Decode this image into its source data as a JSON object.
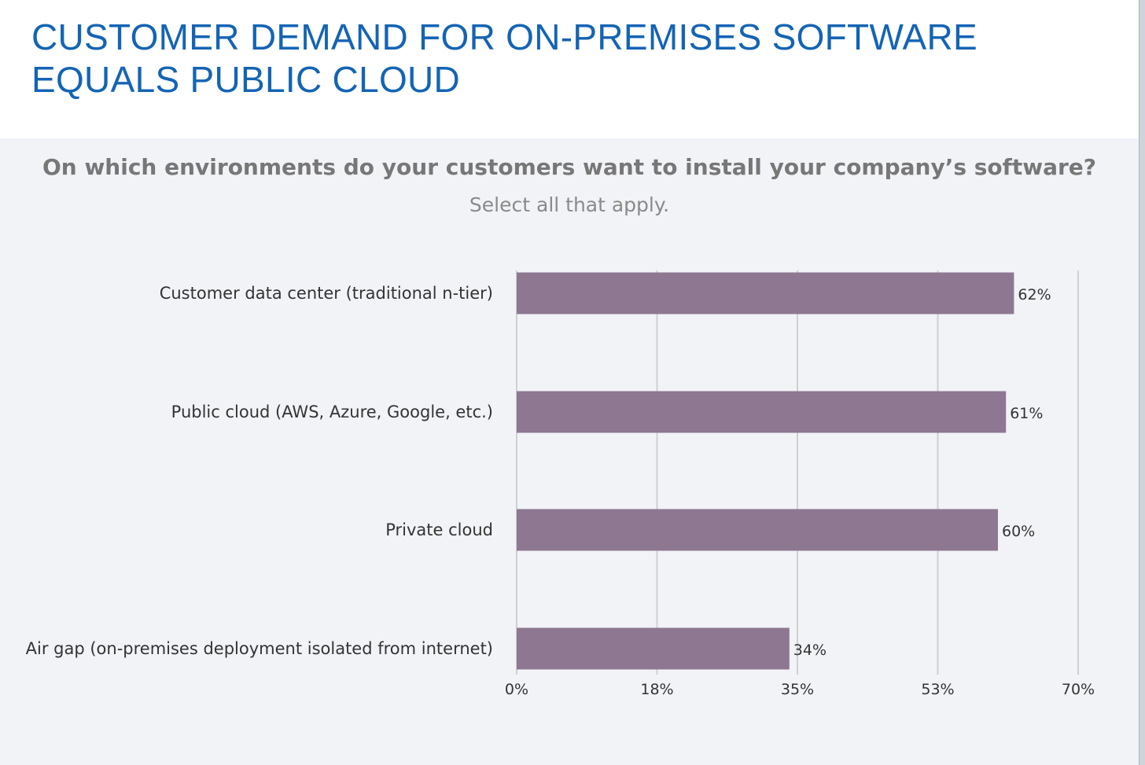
{
  "page": {
    "title": "CUSTOMER DEMAND FOR ON-PREMISES SOFTWARE EQUALS PUBLIC CLOUD"
  },
  "chart_data": {
    "type": "bar",
    "orientation": "horizontal",
    "title": "On which environments do your customers want to install your company’s software?",
    "subtitle": "Select all that apply.",
    "categories": [
      "Customer data center (traditional n-tier)",
      "Public cloud (AWS, Azure, Google, etc.)",
      "Private cloud",
      "Air gap (on-premises deployment isolated from internet)"
    ],
    "values": [
      62,
      61,
      60,
      34
    ],
    "value_labels": [
      "62%",
      "61%",
      "60%",
      "34%"
    ],
    "xlim": [
      0,
      70
    ],
    "xticks": [
      0,
      17.5,
      35,
      52.5,
      70
    ],
    "xtick_labels": [
      "0%",
      "18%",
      "35%",
      "53%",
      "70%"
    ],
    "grid": true,
    "bar_color": "#8e7891",
    "grid_color": "#d0d0d0"
  }
}
